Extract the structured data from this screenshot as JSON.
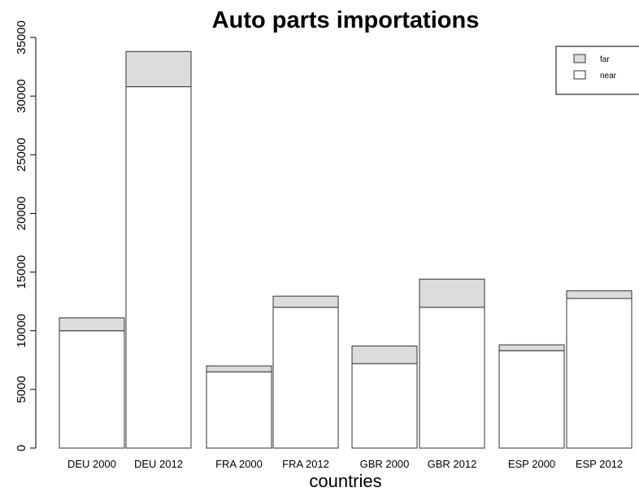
{
  "chart_data": {
    "type": "bar",
    "stacked": true,
    "title": "Auto parts importations",
    "xlabel": "countries",
    "ylabel": "",
    "ylim": [
      0,
      35000
    ],
    "yticks": [
      0,
      5000,
      10000,
      15000,
      20000,
      25000,
      30000,
      35000
    ],
    "categories": [
      "DEU 2000",
      "DEU 2012",
      "FRA 2000",
      "FRA 2012",
      "GBR 2000",
      "GBR 2012",
      "ESP 2000",
      "ESP 2012"
    ],
    "series": [
      {
        "name": "near",
        "color": "#ffffff",
        "values": [
          10000,
          30800,
          6500,
          12000,
          7200,
          12000,
          8300,
          12750
        ]
      },
      {
        "name": "far",
        "color": "#dcdcdc",
        "values": [
          1100,
          3000,
          500,
          950,
          1500,
          2400,
          500,
          650
        ]
      }
    ],
    "legend_position": "top-right",
    "legend_order": [
      "far",
      "near"
    ],
    "grid": false
  }
}
